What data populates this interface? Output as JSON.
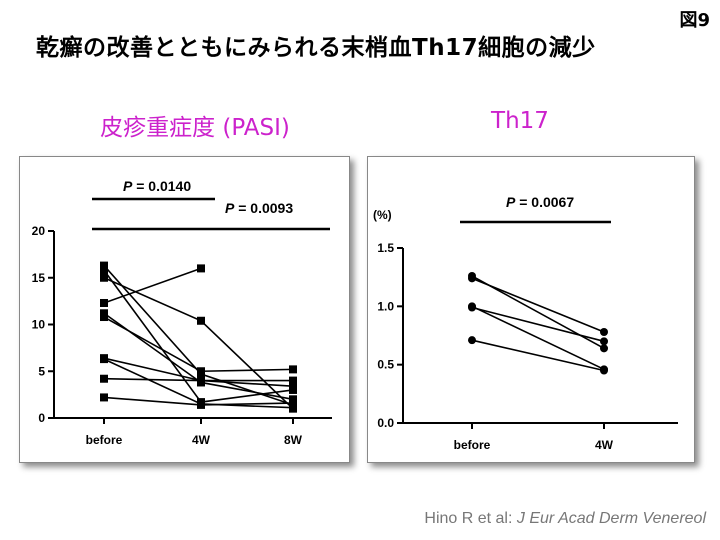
{
  "figure_label": "図9",
  "title": "乾癬の改善とともにみられる末梢血Th17細胞の減少",
  "citation": {
    "authors": "Hino R et al: ",
    "journal": "J Eur Acad Derm Venereol"
  },
  "chart_data": [
    {
      "type": "line",
      "title": "皮疹重症度 (PASI)",
      "categories": [
        "before",
        "4W",
        "8W"
      ],
      "ylim": [
        0,
        20
      ],
      "yticks": [
        "0",
        "5",
        "10",
        "15",
        "20"
      ],
      "y_unit_label": "",
      "series": [
        {
          "values": [
            16.3,
            4.7,
            1.4
          ]
        },
        {
          "values": [
            15.8,
            1.7,
            3.0
          ]
        },
        {
          "values": [
            15.0,
            10.4,
            1.0
          ]
        },
        {
          "values": [
            12.3,
            16.0,
            null
          ]
        },
        {
          "values": [
            11.2,
            3.8,
            2.0
          ]
        },
        {
          "values": [
            10.8,
            5.0,
            5.2
          ]
        },
        {
          "values": [
            6.4,
            4.0,
            4.0
          ]
        },
        {
          "values": [
            6.3,
            1.5,
            1.1
          ]
        },
        {
          "values": [
            4.2,
            4.0,
            3.4
          ]
        },
        {
          "values": [
            2.2,
            1.4,
            1.6
          ]
        }
      ],
      "marker": "square",
      "annotations": [
        {
          "text": "P = 0.0140",
          "from": "before",
          "to": "4W"
        },
        {
          "text": "P = 0.0093",
          "from": "before",
          "to": "8W"
        }
      ]
    },
    {
      "type": "line",
      "title": "Th17",
      "categories": [
        "before",
        "4W"
      ],
      "ylim": [
        0,
        1.5
      ],
      "yticks": [
        "0.0",
        "0.5",
        "1.0",
        "1.5"
      ],
      "y_unit_label": "(%)",
      "series": [
        {
          "values": [
            1.26,
            0.64
          ]
        },
        {
          "values": [
            1.24,
            0.78
          ]
        },
        {
          "values": [
            1.0,
            0.46
          ]
        },
        {
          "values": [
            0.99,
            0.7
          ]
        },
        {
          "values": [
            0.71,
            0.45
          ]
        }
      ],
      "marker": "circle",
      "annotations": [
        {
          "text": "P = 0.0067",
          "from": "before",
          "to": "4W"
        }
      ]
    }
  ]
}
